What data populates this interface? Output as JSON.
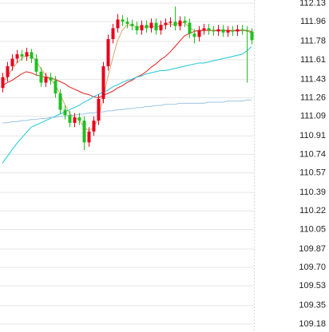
{
  "chart_data": {
    "type": "candlestick",
    "up_color": "#e8001c",
    "down_color": "#1fc01f",
    "ylim": [
      109.18,
      112.13
    ],
    "yticks": [
      112.13,
      111.96,
      111.78,
      111.61,
      111.43,
      111.26,
      111.09,
      110.91,
      110.74,
      110.57,
      110.39,
      110.22,
      110.05,
      109.87,
      {
        "value": 109.7,
        "label": "109.70"
      },
      109.53,
      109.35,
      109.18
    ],
    "grid": true,
    "open": [
      111.35,
      111.45,
      111.55,
      111.62,
      111.66,
      111.64,
      111.68,
      111.62,
      111.5,
      111.4,
      111.45,
      111.42,
      111.3,
      111.15,
      111.1,
      111.03,
      111.08,
      111.05,
      110.85,
      110.95,
      111.05,
      111.25,
      111.55,
      111.8,
      111.9,
      111.98,
      111.96,
      111.94,
      111.92,
      111.88,
      111.93,
      111.9,
      111.95,
      111.88,
      111.93,
      111.95,
      111.96,
      111.92,
      111.97,
      111.95,
      111.85,
      111.82,
      111.88,
      111.9,
      111.88,
      111.87,
      111.89,
      111.86,
      111.88,
      111.87,
      111.89,
      111.88,
      111.87
    ],
    "close": [
      111.45,
      111.55,
      111.62,
      111.66,
      111.64,
      111.68,
      111.62,
      111.5,
      111.4,
      111.45,
      111.42,
      111.3,
      111.15,
      111.1,
      111.03,
      111.08,
      111.05,
      110.85,
      110.95,
      111.05,
      111.25,
      111.55,
      111.8,
      111.9,
      111.98,
      111.96,
      111.94,
      111.92,
      111.88,
      111.93,
      111.9,
      111.95,
      111.88,
      111.93,
      111.95,
      111.96,
      111.92,
      111.97,
      111.95,
      111.85,
      111.82,
      111.88,
      111.9,
      111.88,
      111.87,
      111.89,
      111.86,
      111.88,
      111.87,
      111.89,
      111.88,
      111.87,
      111.79
    ],
    "high": [
      111.49,
      111.59,
      111.66,
      111.7,
      111.7,
      111.72,
      111.71,
      111.66,
      111.54,
      111.49,
      111.49,
      111.46,
      111.34,
      111.19,
      111.14,
      111.12,
      111.12,
      111.09,
      110.99,
      111.09,
      111.29,
      111.59,
      111.84,
      111.94,
      112.03,
      112.02,
      112.0,
      111.98,
      111.96,
      111.97,
      111.97,
      111.99,
      111.99,
      111.97,
      111.99,
      112.0,
      112.1,
      112.01,
      112.01,
      111.99,
      111.89,
      111.92,
      111.94,
      111.94,
      111.92,
      111.93,
      111.93,
      111.92,
      111.92,
      111.93,
      111.93,
      111.92,
      111.9
    ],
    "low": [
      111.31,
      111.41,
      111.51,
      111.58,
      111.6,
      111.6,
      111.58,
      111.46,
      111.36,
      111.36,
      111.38,
      111.26,
      111.11,
      111.06,
      110.99,
      110.99,
      111.01,
      110.78,
      110.81,
      110.91,
      111.01,
      111.21,
      111.51,
      111.76,
      111.86,
      111.92,
      111.9,
      111.88,
      111.84,
      111.84,
      111.86,
      111.86,
      111.84,
      111.84,
      111.89,
      111.91,
      111.88,
      111.88,
      111.91,
      111.81,
      111.76,
      111.78,
      111.84,
      111.84,
      111.83,
      111.83,
      111.82,
      111.82,
      111.83,
      111.83,
      111.84,
      111.4,
      111.75
    ],
    "series": [
      {
        "color": "#d9a66b",
        "values": [
          111.4,
          111.45,
          111.52,
          111.58,
          111.62,
          111.65,
          111.65,
          111.6,
          111.53,
          111.47,
          111.43,
          111.38,
          111.3,
          111.2,
          111.12,
          111.08,
          111.06,
          110.99,
          110.96,
          110.98,
          111.07,
          111.25,
          111.45,
          111.62,
          111.78,
          111.88,
          111.93,
          111.93,
          111.91,
          111.91,
          111.91,
          111.92,
          111.91,
          111.92,
          111.93,
          111.94,
          111.93,
          111.95,
          111.95,
          111.91,
          111.88,
          111.87,
          111.88,
          111.88,
          111.88,
          111.88,
          111.88,
          111.88,
          111.87,
          111.88,
          111.88,
          111.88,
          111.85
        ]
      },
      {
        "color": "#e0201c",
        "values": [
          111.37,
          111.4,
          111.42,
          111.45,
          111.48,
          111.5,
          111.49,
          111.47,
          111.46,
          111.45,
          111.44,
          111.43,
          111.41,
          111.39,
          111.36,
          111.34,
          111.32,
          111.3,
          111.29,
          111.27,
          111.26,
          111.28,
          111.3,
          111.32,
          111.35,
          111.37,
          111.4,
          111.42,
          111.45,
          111.47,
          111.5,
          111.54,
          111.57,
          111.61,
          111.64,
          111.68,
          111.73,
          111.78,
          111.83,
          111.85,
          111.87,
          111.88,
          111.88,
          111.88,
          111.88,
          111.88,
          111.88,
          111.88,
          111.88,
          111.88,
          111.88,
          111.88,
          111.87
        ]
      },
      {
        "color": "#1cc8d8",
        "values": [
          110.66,
          110.72,
          110.78,
          110.84,
          110.89,
          110.94,
          110.99,
          111.01,
          111.03,
          111.05,
          111.07,
          111.09,
          111.11,
          111.13,
          111.15,
          111.17,
          111.19,
          111.22,
          111.24,
          111.27,
          111.29,
          111.31,
          111.33,
          111.36,
          111.38,
          111.4,
          111.42,
          111.43,
          111.45,
          111.46,
          111.48,
          111.49,
          111.5,
          111.51,
          111.51,
          111.52,
          111.53,
          111.54,
          111.55,
          111.56,
          111.57,
          111.58,
          111.58,
          111.59,
          111.6,
          111.61,
          111.62,
          111.63,
          111.64,
          111.65,
          111.66,
          111.69,
          111.73
        ]
      },
      {
        "color": "#9cc4e4",
        "values": [
          111.03,
          111.03,
          111.04,
          111.04,
          111.05,
          111.05,
          111.06,
          111.06,
          111.07,
          111.07,
          111.08,
          111.08,
          111.09,
          111.09,
          111.1,
          111.1,
          111.11,
          111.11,
          111.12,
          111.12,
          111.13,
          111.13,
          111.14,
          111.14,
          111.15,
          111.15,
          111.16,
          111.16,
          111.17,
          111.17,
          111.18,
          111.18,
          111.19,
          111.19,
          111.2,
          111.2,
          111.2,
          111.21,
          111.21,
          111.21,
          111.21,
          111.21,
          111.21,
          111.22,
          111.22,
          111.22,
          111.22,
          111.23,
          111.23,
          111.23,
          111.23,
          111.24,
          111.24
        ]
      }
    ]
  }
}
